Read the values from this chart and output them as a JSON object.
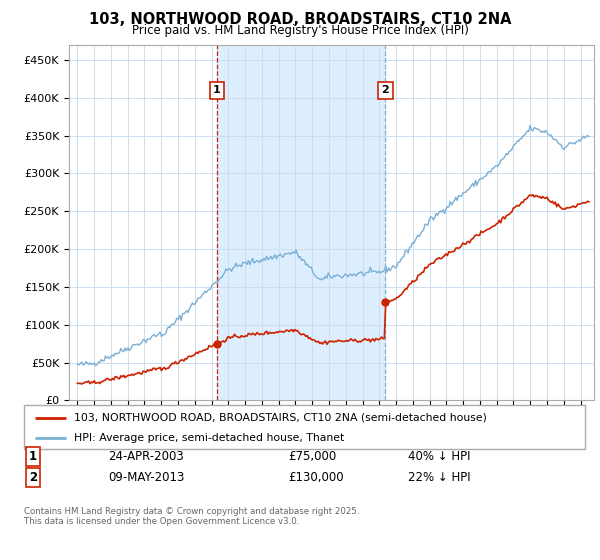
{
  "title": "103, NORTHWOOD ROAD, BROADSTAIRS, CT10 2NA",
  "subtitle": "Price paid vs. HM Land Registry's House Price Index (HPI)",
  "yticks": [
    0,
    50000,
    100000,
    150000,
    200000,
    250000,
    300000,
    350000,
    400000,
    450000
  ],
  "ytick_labels": [
    "£0",
    "£50K",
    "£100K",
    "£150K",
    "£200K",
    "£250K",
    "£300K",
    "£350K",
    "£400K",
    "£450K"
  ],
  "hpi_color": "#7bafd4",
  "price_color": "#cc2200",
  "shade_color": "#ddeeff",
  "marker1_x": 2003.31,
  "marker1_y": 75000,
  "marker2_x": 2013.36,
  "marker2_y": 130000,
  "vline1_color": "#cc2200",
  "vline2_color": "#7bafd4",
  "legend_entries": [
    "103, NORTHWOOD ROAD, BROADSTAIRS, CT10 2NA (semi-detached house)",
    "HPI: Average price, semi-detached house, Thanet"
  ],
  "table_rows": [
    [
      "1",
      "24-APR-2003",
      "£75,000",
      "40% ↓ HPI"
    ],
    [
      "2",
      "09-MAY-2013",
      "£130,000",
      "22% ↓ HPI"
    ]
  ],
  "footer": "Contains HM Land Registry data © Crown copyright and database right 2025.\nThis data is licensed under the Open Government Licence v3.0.",
  "background_color": "#ffffff",
  "grid_color": "#ccddee",
  "xlim": [
    1994.5,
    2025.8
  ],
  "ylim": [
    0,
    470000
  ]
}
